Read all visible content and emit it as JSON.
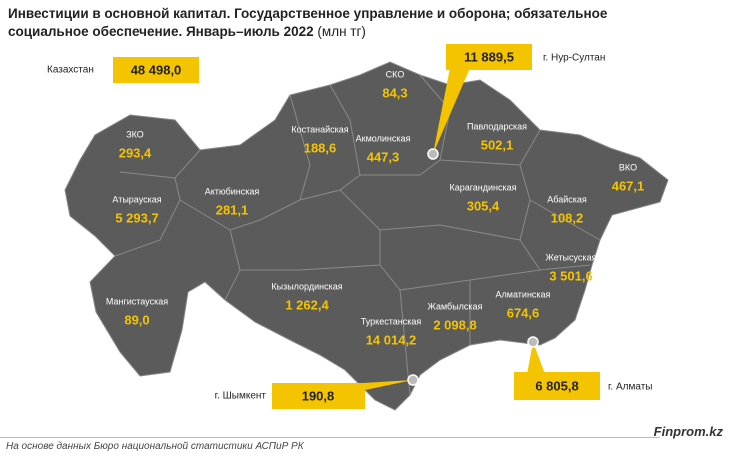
{
  "header": {
    "title": "Инвестиции в основной капитал. Государственное управление и оборона; обязательное социальное обеспечение. Январь–июль 2022",
    "unit": "(млн тг)"
  },
  "total": {
    "label": "Казахстан",
    "value": "48 498,0"
  },
  "regions": [
    {
      "name": "ЗКО",
      "value": "293,4"
    },
    {
      "name": "Атырауская",
      "value": "5 293,7"
    },
    {
      "name": "Актюбинская",
      "value": "281,1"
    },
    {
      "name": "Костанайская",
      "value": "188,6"
    },
    {
      "name": "СКО",
      "value": "84,3"
    },
    {
      "name": "Акмолинская",
      "value": "447,3"
    },
    {
      "name": "Павлодарская",
      "value": "502,1"
    },
    {
      "name": "Карагандинская",
      "value": "305,4"
    },
    {
      "name": "Абайская",
      "value": "108,2"
    },
    {
      "name": "ВКО",
      "value": "467,1"
    },
    {
      "name": "Жетысуская",
      "value": "3 501,6"
    },
    {
      "name": "Алматинская",
      "value": "674,6"
    },
    {
      "name": "Жамбылская",
      "value": "2 098,8"
    },
    {
      "name": "Туркестанская",
      "value": "14 014,2"
    },
    {
      "name": "Кызылординская",
      "value": "1 262,4"
    },
    {
      "name": "Мангистауская",
      "value": "89,0"
    }
  ],
  "cities": [
    {
      "name": "г. Нур-Султан",
      "value": "11 889,5"
    },
    {
      "name": "г. Шымкент",
      "value": "190,8"
    },
    {
      "name": "г. Алматы",
      "value": "6 805,8"
    }
  ],
  "footer": {
    "source": "На основе данных Бюро национальной статистики АСПиР РК",
    "brand": "Finprom.kz"
  }
}
